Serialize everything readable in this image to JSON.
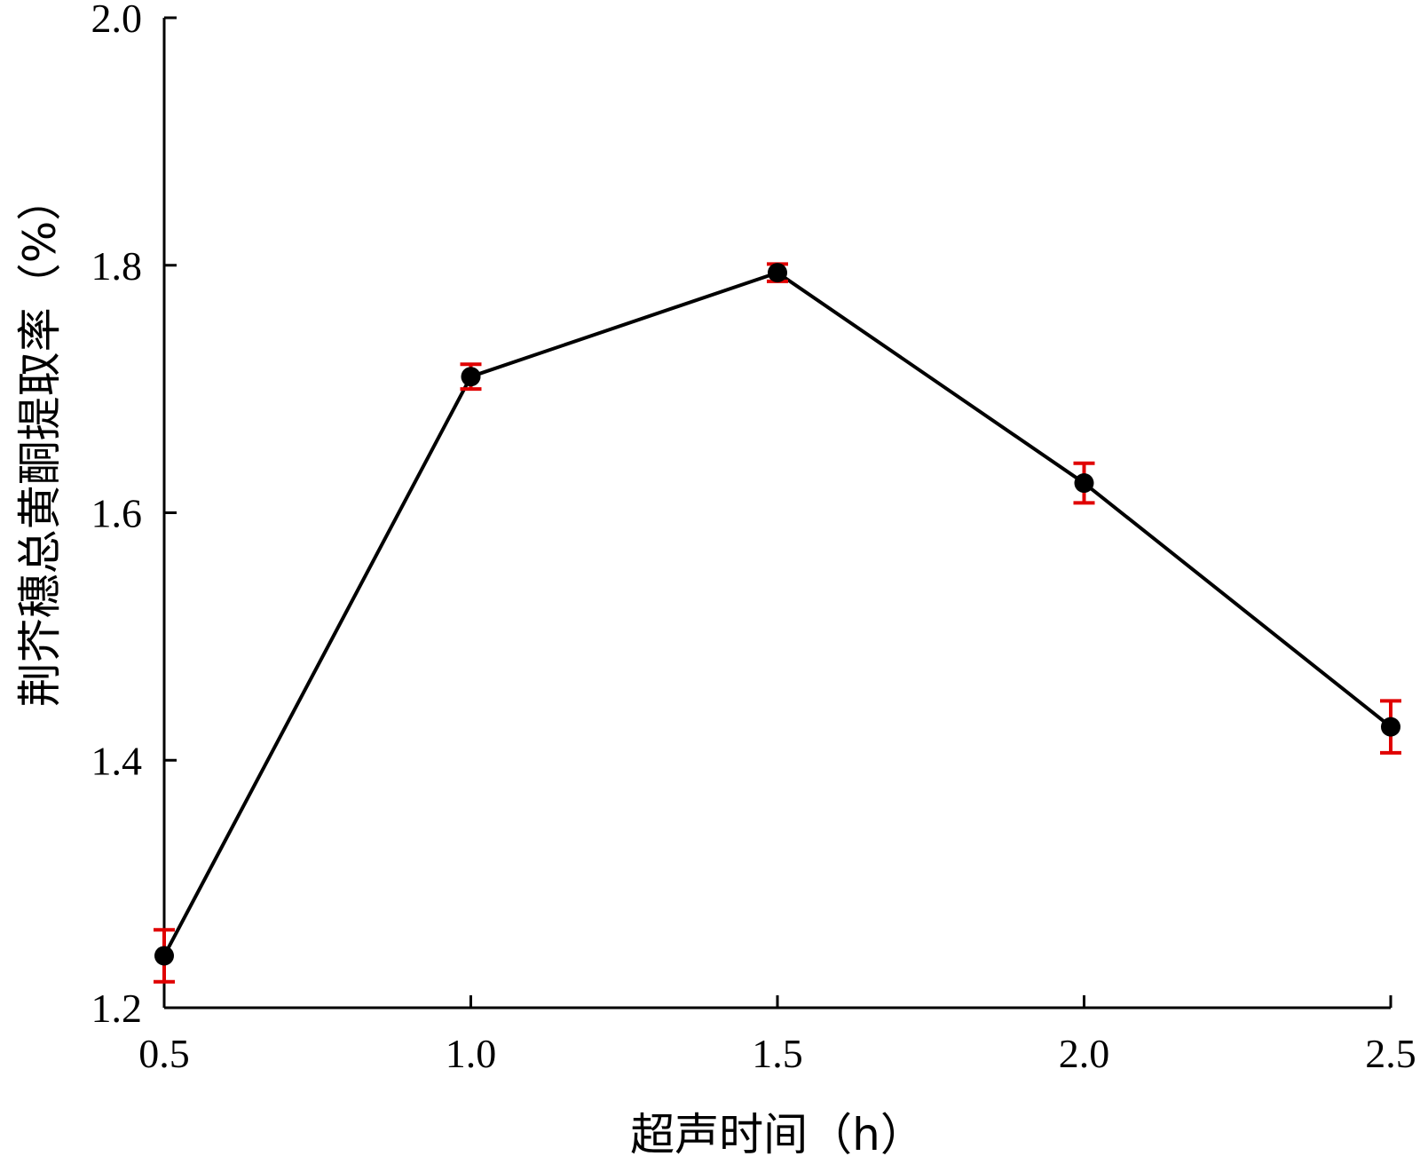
{
  "chart_data": {
    "type": "line",
    "title": "",
    "xlabel": "超声时间（h）",
    "ylabel": "荆芥穗总黄酮提取率（%）",
    "xlim": [
      0.5,
      2.5
    ],
    "ylim": [
      1.2,
      2.0
    ],
    "x_ticks": [
      0.5,
      1.0,
      1.5,
      2.0,
      2.5
    ],
    "x_tick_labels": [
      "0.5",
      "1.0",
      "1.5",
      "2.0",
      "2.5"
    ],
    "y_ticks": [
      1.2,
      1.4,
      1.6,
      1.8,
      2.0
    ],
    "y_tick_labels": [
      "1.2",
      "1.4",
      "1.6",
      "1.8",
      "2.0"
    ],
    "grid": false,
    "legend": "none",
    "series": [
      {
        "x": [
          0.5,
          1.0,
          1.5,
          2.0,
          2.5
        ],
        "values": [
          1.242,
          1.71,
          1.794,
          1.624,
          1.427
        ],
        "error": [
          0.021,
          0.01,
          0.007,
          0.016,
          0.021
        ],
        "line_color": "#000000",
        "marker_color": "#000000",
        "error_color": "#e00000"
      }
    ]
  }
}
